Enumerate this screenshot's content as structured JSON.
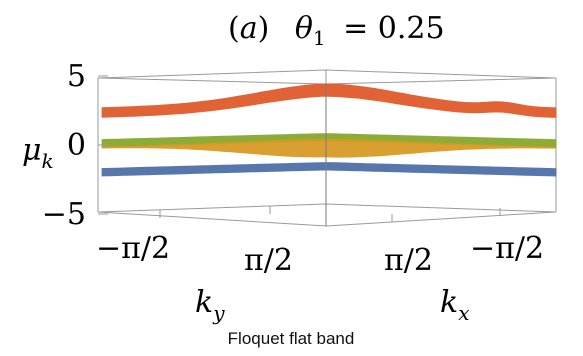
{
  "chart_data": {
    "type": "surface3d",
    "title": "(a)  θ₁ = 0.25",
    "title_prefix": "(a)",
    "title_param": "θ",
    "title_param_sub": "1",
    "title_value": "= 0.25",
    "zlabel": "μ",
    "zlabel_sub": "k",
    "xlabel_left": "k",
    "xlabel_left_sub": "y",
    "xlabel_right": "k",
    "xlabel_right_sub": "x",
    "z_ticks": [
      "5",
      "0",
      "−5"
    ],
    "z_tick_values": [
      5,
      0,
      -5
    ],
    "zlim": [
      -5,
      5
    ],
    "left_ticks": [
      "−π/2",
      "π/2"
    ],
    "right_ticks": [
      "π/2",
      "−π/2"
    ],
    "caption": "Floquet flat band",
    "grid": false,
    "box": true,
    "series": [
      {
        "color": "#e05a2b",
        "mu_min": 2.0,
        "mu_max": 4.0,
        "shape": "dispersive-top"
      },
      {
        "color": "#86a82c",
        "mu_min": 0.0,
        "mu_max": 0.4,
        "shape": "flat"
      },
      {
        "color": "#d89a25",
        "mu_min": -1.3,
        "mu_max": 0.0,
        "shape": "dispersive-mid"
      },
      {
        "color": "#4d6fa8",
        "mu_min": -2.1,
        "mu_max": -1.7,
        "shape": "flat"
      }
    ]
  }
}
